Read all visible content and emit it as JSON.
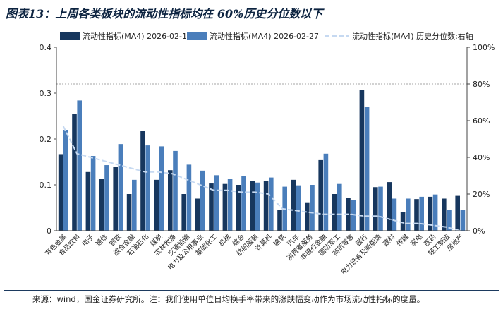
{
  "title": "图表13：上周各类板块的流动性指标均在 60%历史分位数以下",
  "source": "来源：wind，国金证券研究所。注：我们使用单位日均换手率带来的涨跌幅变动作为市场流动性指标的度量。",
  "colors": {
    "series1": "#17375e",
    "series2": "#4a7ebb",
    "line": "#c6d9f1",
    "refline": "#888888",
    "axis": "#444444"
  },
  "chart_data": {
    "type": "bar",
    "categories": [
      "有色金属",
      "食品饮料",
      "电子",
      "通信",
      "钢铁",
      "综合金融",
      "石油石化",
      "煤炭",
      "农林牧渔",
      "交通运输",
      "电力及公用事业",
      "基础化工",
      "机械",
      "综合",
      "纺织服装",
      "计算机",
      "建筑",
      "汽车",
      "消费者服务",
      "非银行金融",
      "国防军工",
      "商贸零售",
      "银行",
      "电力设备及新能源",
      "建材",
      "传媒",
      "家电",
      "医药",
      "轻工制造",
      "房地产"
    ],
    "series": [
      {
        "name": "流动性指标(MA4) 2026-02-13",
        "axis": "left",
        "type": "bar",
        "values": [
          0.167,
          0.255,
          0.128,
          0.113,
          0.14,
          0.08,
          0.218,
          0.111,
          0.132,
          0.08,
          0.07,
          0.103,
          0.102,
          0.1,
          0.108,
          0.108,
          0.045,
          0.111,
          0.062,
          0.154,
          0.08,
          0.071,
          0.307,
          0.095,
          0.106,
          0.04,
          0.069,
          0.074,
          0.07,
          0.076
        ]
      },
      {
        "name": "流动性指标(MA4) 2026-02-27",
        "axis": "left",
        "type": "bar",
        "values": [
          0.22,
          0.284,
          0.163,
          0.143,
          0.189,
          0.111,
          0.186,
          0.184,
          0.174,
          0.144,
          0.131,
          0.121,
          0.113,
          0.119,
          0.105,
          0.116,
          0.096,
          0.099,
          0.1,
          0.168,
          0.102,
          0.067,
          0.27,
          0.096,
          0.07,
          0.07,
          0.074,
          0.079,
          0.045,
          0.045
        ]
      },
      {
        "name": "流动性指标(MA4) 历史分位数:右轴",
        "axis": "right",
        "type": "line",
        "style": "dashed",
        "values": [
          57,
          42,
          40,
          38,
          36,
          34,
          32,
          32,
          31,
          28,
          25,
          22,
          22,
          21,
          21,
          20,
          12,
          11,
          10,
          9,
          9,
          9,
          8,
          8,
          6,
          4,
          4,
          3,
          2,
          0
        ]
      }
    ],
    "reference_line": {
      "axis": "right",
      "value": 80
    },
    "ylim": [
      0,
      0.4
    ],
    "yticks": [
      "0",
      "0.1",
      "0.2",
      "0.3",
      "0.4"
    ],
    "y2lim": [
      0,
      100
    ],
    "y2ticks": [
      "0%",
      "20%",
      "40%",
      "60%",
      "80%",
      "100%"
    ],
    "legend_position": "top",
    "xlabel": "",
    "ylabel": ""
  }
}
